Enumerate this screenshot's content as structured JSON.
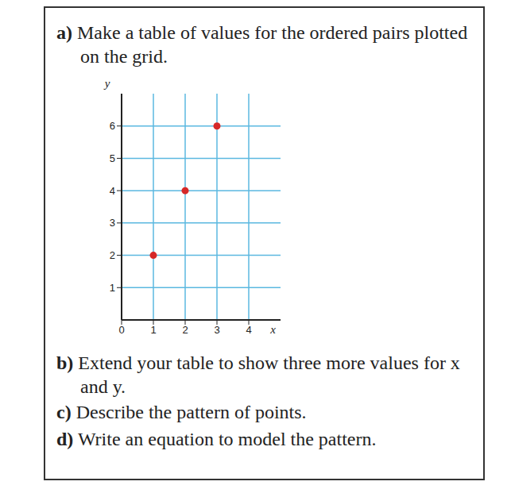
{
  "document": {
    "parts": [
      {
        "label": "a)",
        "text": "Make a table of values for the ordered pairs plotted on the grid."
      },
      {
        "label": "b)",
        "text": "Extend your table to show three more values for x and y."
      },
      {
        "label": "c)",
        "text": "Describe the pattern of points."
      },
      {
        "label": "d)",
        "text": "Write an equation to model the pattern."
      }
    ]
  },
  "chart_data": {
    "type": "scatter",
    "x": [
      1,
      2,
      3
    ],
    "values": [
      2,
      4,
      6
    ],
    "color": "#d62828",
    "marker": "circle",
    "x_label": "x",
    "y_label": "y",
    "xlim": [
      0,
      5
    ],
    "ylim": [
      0,
      7
    ],
    "xticks": [
      0,
      1,
      2,
      3,
      4
    ],
    "yticks": [
      1,
      2,
      3,
      4,
      5,
      6
    ],
    "grid": true
  }
}
